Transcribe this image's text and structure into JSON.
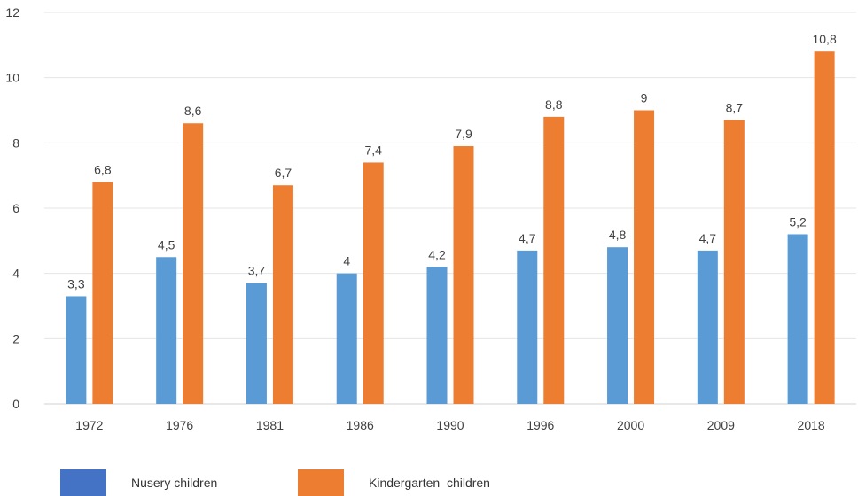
{
  "chart_data": {
    "type": "bar",
    "categories": [
      "1972",
      "1976",
      "1981",
      "1986",
      "1990",
      "1996",
      "2000",
      "2009",
      "2018"
    ],
    "series": [
      {
        "name": "Nusery children",
        "values": [
          3.3,
          4.5,
          3.7,
          4,
          4.2,
          4.7,
          4.8,
          4.7,
          5.2
        ],
        "labels": [
          "3,3",
          "4,5",
          "3,7",
          "4",
          "4,2",
          "4,7",
          "4,8",
          "4,7",
          "5,2"
        ],
        "color": "#5B9BD5"
      },
      {
        "name": "Kindergarten  children",
        "values": [
          6.8,
          8.6,
          6.7,
          7.4,
          7.9,
          8.8,
          9,
          8.7,
          10.8
        ],
        "labels": [
          "6,8",
          "8,6",
          "6,7",
          "7,4",
          "7,9",
          "8,8",
          "9",
          "8,7",
          "10,8"
        ],
        "color": "#ED7D31"
      }
    ],
    "yticks": [
      "0",
      "2",
      "4",
      "6",
      "8",
      "10",
      "12"
    ],
    "ylim": [
      0,
      12
    ],
    "grid": true,
    "legend_position": "bottom",
    "legend_swatch_colors": [
      "#4472C4",
      "#ED7D31"
    ],
    "title": "",
    "xlabel": "",
    "ylabel": ""
  }
}
